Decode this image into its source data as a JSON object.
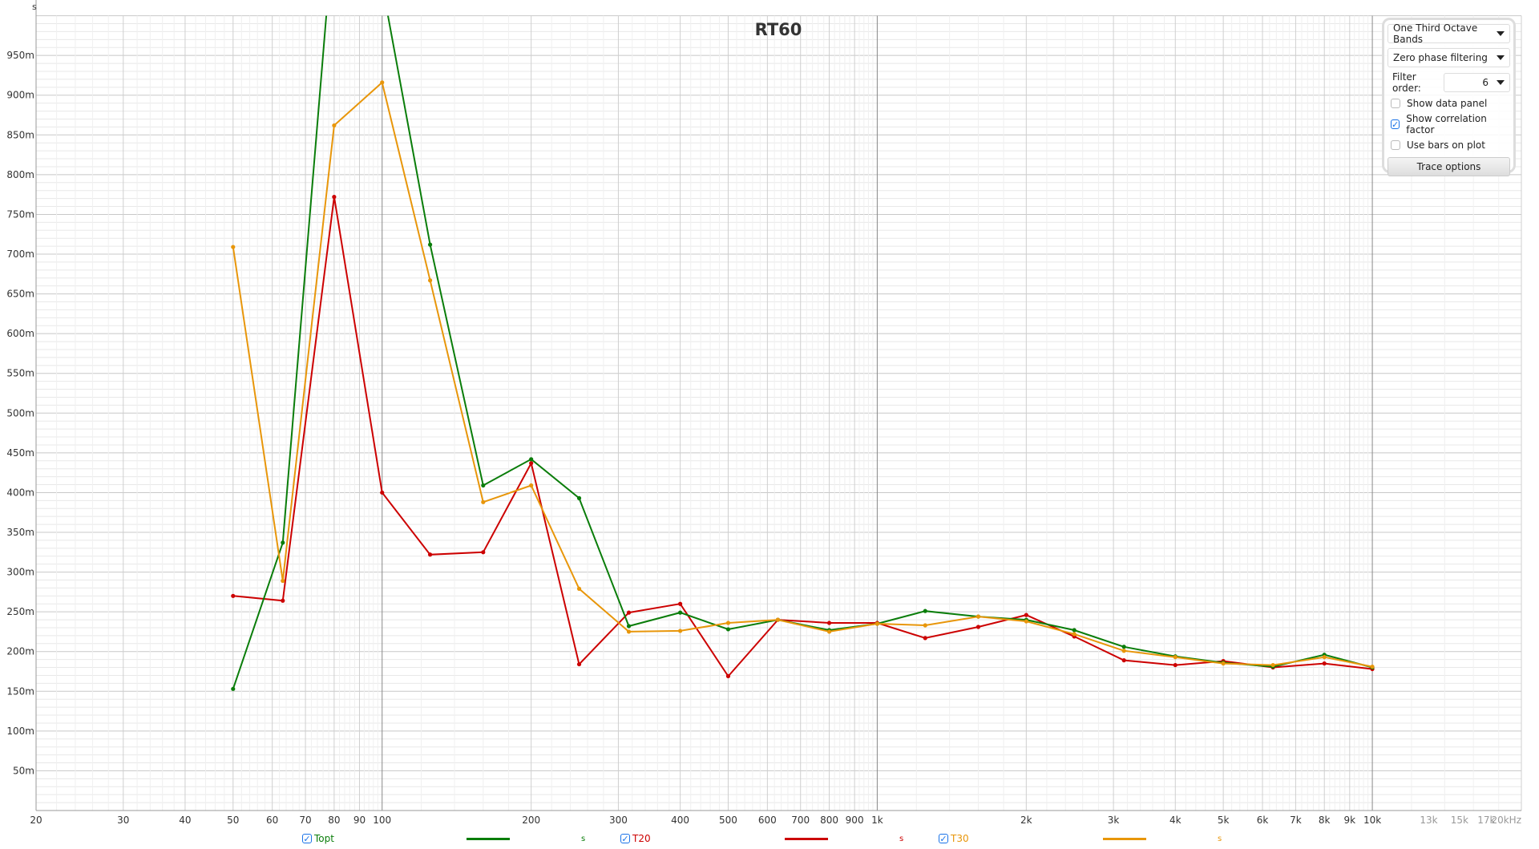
{
  "chart_data": {
    "type": "line",
    "title": "RT60",
    "ylabel": "s",
    "xlabel": "",
    "xscale": "log",
    "xlim": [
      20,
      20000
    ],
    "ylim": [
      0,
      1.0
    ],
    "grid": true,
    "x": [
      50,
      63,
      80,
      100,
      125,
      160,
      200,
      250,
      315,
      400,
      500,
      630,
      800,
      1000,
      1250,
      1600,
      2000,
      2500,
      3150,
      4000,
      5000,
      6300,
      8000,
      10000
    ],
    "x_ticks": [
      {
        "v": 20,
        "l": "20"
      },
      {
        "v": 30,
        "l": "30"
      },
      {
        "v": 40,
        "l": "40"
      },
      {
        "v": 50,
        "l": "50"
      },
      {
        "v": 60,
        "l": "60"
      },
      {
        "v": 70,
        "l": "70"
      },
      {
        "v": 80,
        "l": "80"
      },
      {
        "v": 90,
        "l": "90"
      },
      {
        "v": 100,
        "l": "100"
      },
      {
        "v": 200,
        "l": "200"
      },
      {
        "v": 300,
        "l": "300"
      },
      {
        "v": 400,
        "l": "400"
      },
      {
        "v": 500,
        "l": "500"
      },
      {
        "v": 600,
        "l": "600"
      },
      {
        "v": 700,
        "l": "700"
      },
      {
        "v": 800,
        "l": "800"
      },
      {
        "v": 900,
        "l": "900"
      },
      {
        "v": 1000,
        "l": "1k"
      },
      {
        "v": 2000,
        "l": "2k"
      },
      {
        "v": 3000,
        "l": "3k"
      },
      {
        "v": 4000,
        "l": "4k"
      },
      {
        "v": 5000,
        "l": "5k"
      },
      {
        "v": 6000,
        "l": "6k"
      },
      {
        "v": 7000,
        "l": "7k"
      },
      {
        "v": 8000,
        "l": "8k"
      },
      {
        "v": 9000,
        "l": "9k"
      },
      {
        "v": 10000,
        "l": "10k"
      },
      {
        "v": 13000,
        "l": "13k"
      },
      {
        "v": 15000,
        "l": "15k"
      },
      {
        "v": 17000,
        "l": "17k"
      },
      {
        "v": 20000,
        "l": "20kHz"
      }
    ],
    "y_ticks": [
      {
        "v": 0.05,
        "l": "50m"
      },
      {
        "v": 0.1,
        "l": "100m"
      },
      {
        "v": 0.15,
        "l": "150m"
      },
      {
        "v": 0.2,
        "l": "200m"
      },
      {
        "v": 0.25,
        "l": "250m"
      },
      {
        "v": 0.3,
        "l": "300m"
      },
      {
        "v": 0.35,
        "l": "350m"
      },
      {
        "v": 0.4,
        "l": "400m"
      },
      {
        "v": 0.45,
        "l": "450m"
      },
      {
        "v": 0.5,
        "l": "500m"
      },
      {
        "v": 0.55,
        "l": "550m"
      },
      {
        "v": 0.6,
        "l": "600m"
      },
      {
        "v": 0.65,
        "l": "650m"
      },
      {
        "v": 0.7,
        "l": "700m"
      },
      {
        "v": 0.75,
        "l": "750m"
      },
      {
        "v": 0.8,
        "l": "800m"
      },
      {
        "v": 0.85,
        "l": "850m"
      },
      {
        "v": 0.9,
        "l": "900m"
      },
      {
        "v": 0.95,
        "l": "950m"
      }
    ],
    "series": [
      {
        "name": "Topt",
        "color": "#0a7d0a",
        "unit": "s",
        "checked": true,
        "values": [
          0.153,
          0.337,
          1.12,
          1.04,
          0.712,
          0.409,
          0.442,
          0.393,
          0.232,
          0.249,
          0.228,
          0.24,
          0.227,
          0.235,
          0.251,
          0.244,
          0.24,
          0.227,
          0.206,
          0.194,
          0.186,
          0.181,
          0.196,
          0.18
        ]
      },
      {
        "name": "T20",
        "color": "#cc0000",
        "unit": "s",
        "checked": true,
        "values": [
          0.27,
          0.264,
          0.772,
          0.4,
          0.322,
          0.325,
          0.437,
          0.184,
          0.249,
          0.26,
          0.169,
          0.24,
          0.236,
          0.236,
          0.217,
          0.231,
          0.246,
          0.219,
          0.189,
          0.183,
          0.188,
          0.18,
          0.185,
          0.178
        ]
      },
      {
        "name": "T30",
        "color": "#e8960a",
        "unit": "s",
        "checked": true,
        "values": [
          0.709,
          0.289,
          0.862,
          0.916,
          0.667,
          0.388,
          0.409,
          0.279,
          0.225,
          0.226,
          0.236,
          0.24,
          0.225,
          0.235,
          0.233,
          0.244,
          0.238,
          0.222,
          0.201,
          0.193,
          0.185,
          0.183,
          0.193,
          0.181
        ]
      }
    ]
  },
  "panel": {
    "band_select": "One Third Octave Bands",
    "filter_select": "Zero phase filtering",
    "filter_order_label": "Filter order:",
    "filter_order": "6",
    "show_data_panel": {
      "label": "Show data panel",
      "checked": false
    },
    "show_correlation": {
      "label": "Show correlation factor",
      "checked": true
    },
    "use_bars": {
      "label": "Use bars on plot",
      "checked": false
    },
    "trace_options": "Trace options"
  }
}
